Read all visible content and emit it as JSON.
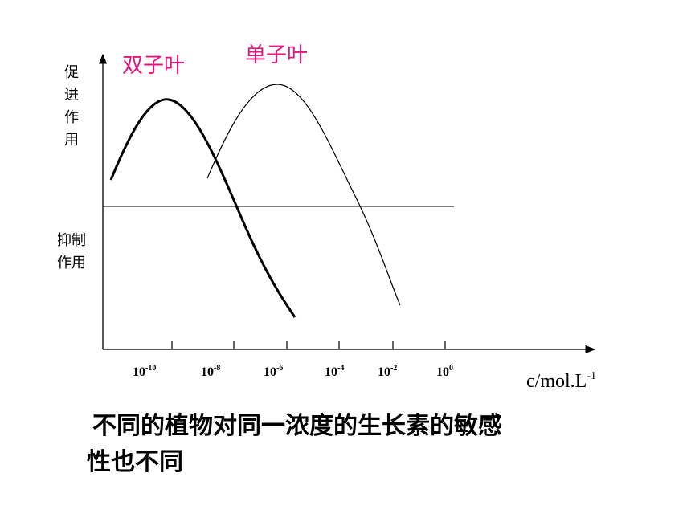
{
  "labels": {
    "dicot": "双子叶",
    "monocot": "单子叶",
    "promote": [
      "促",
      "进",
      "作",
      "用"
    ],
    "inhibit": [
      "抑制",
      "作用"
    ]
  },
  "x_axis": {
    "ticks": [
      {
        "base": "10",
        "exp": "-10"
      },
      {
        "base": "10",
        "exp": "-8"
      },
      {
        "base": "10",
        "exp": "-6"
      },
      {
        "base": "10",
        "exp": "-4"
      },
      {
        "base": "10",
        "exp": "-2"
      },
      {
        "base": "10",
        "exp": "0"
      }
    ],
    "unit": {
      "base": "c/mol.L",
      "exp": "-1"
    }
  },
  "caption": [
    "不同的植物对同一浓度的生长素的敏感",
    "性也不同"
  ]
}
